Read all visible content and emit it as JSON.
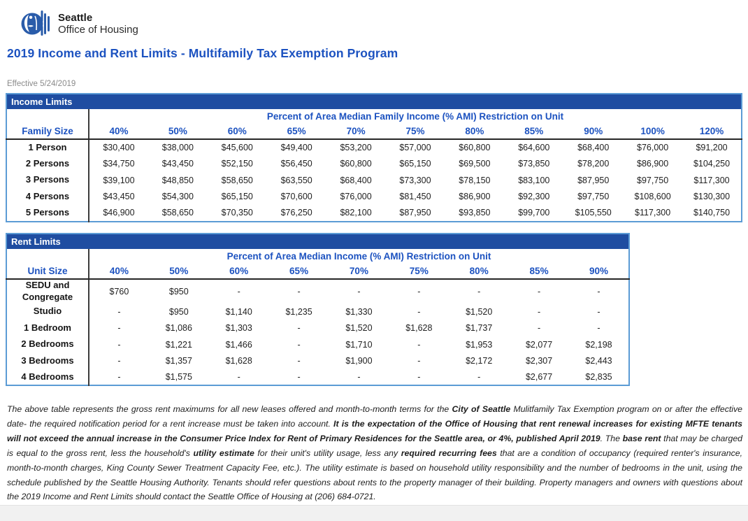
{
  "colors": {
    "accent_blue": "#1c52c0",
    "section_bar_blue": "#1f4da1",
    "table_border_blue": "#5b9bd5",
    "logo_blue": "#2a5caa"
  },
  "header": {
    "logo_brand": "Seattle",
    "logo_subtitle": "Office of Housing",
    "title": "2019 Income and Rent Limits - Multifamily Tax Exemption Program",
    "effective_date": "Effective 5/24/2019"
  },
  "income_table": {
    "section_title": "Income Limits",
    "span_header": "Percent of Area Median Family Income (% AMI) Restriction on Unit",
    "row_header": "Family Size",
    "columns": [
      "40%",
      "50%",
      "60%",
      "65%",
      "70%",
      "75%",
      "80%",
      "85%",
      "90%",
      "100%",
      "120%"
    ],
    "rows": [
      {
        "label": "1 Person",
        "values": [
          "$30,400",
          "$38,000",
          "$45,600",
          "$49,400",
          "$53,200",
          "$57,000",
          "$60,800",
          "$64,600",
          "$68,400",
          "$76,000",
          "$91,200"
        ]
      },
      {
        "label": "2 Persons",
        "values": [
          "$34,750",
          "$43,450",
          "$52,150",
          "$56,450",
          "$60,800",
          "$65,150",
          "$69,500",
          "$73,850",
          "$78,200",
          "$86,900",
          "$104,250"
        ]
      },
      {
        "label": "3 Persons",
        "values": [
          "$39,100",
          "$48,850",
          "$58,650",
          "$63,550",
          "$68,400",
          "$73,300",
          "$78,150",
          "$83,100",
          "$87,950",
          "$97,750",
          "$117,300"
        ]
      },
      {
        "label": "4 Persons",
        "values": [
          "$43,450",
          "$54,300",
          "$65,150",
          "$70,600",
          "$76,000",
          "$81,450",
          "$86,900",
          "$92,300",
          "$97,750",
          "$108,600",
          "$130,300"
        ]
      },
      {
        "label": "5 Persons",
        "values": [
          "$46,900",
          "$58,650",
          "$70,350",
          "$76,250",
          "$82,100",
          "$87,950",
          "$93,850",
          "$99,700",
          "$105,550",
          "$117,300",
          "$140,750"
        ]
      }
    ]
  },
  "rent_table": {
    "section_title": "Rent Limits",
    "span_header": "Percent of Area Median Income (% AMI) Restriction on Unit",
    "row_header": "Unit Size",
    "columns": [
      "40%",
      "50%",
      "60%",
      "65%",
      "70%",
      "75%",
      "80%",
      "85%",
      "90%"
    ],
    "rows": [
      {
        "label": "SEDU and Congregate",
        "values": [
          "$760",
          "$950",
          "-",
          "-",
          "-",
          "-",
          "-",
          "-",
          "-"
        ]
      },
      {
        "label": "Studio",
        "values": [
          "-",
          "$950",
          "$1,140",
          "$1,235",
          "$1,330",
          "-",
          "$1,520",
          "-",
          "-"
        ]
      },
      {
        "label": "1 Bedroom",
        "values": [
          "-",
          "$1,086",
          "$1,303",
          "-",
          "$1,520",
          "$1,628",
          "$1,737",
          "-",
          "-"
        ]
      },
      {
        "label": "2 Bedrooms",
        "values": [
          "-",
          "$1,221",
          "$1,466",
          "-",
          "$1,710",
          "-",
          "$1,953",
          "$2,077",
          "$2,198"
        ]
      },
      {
        "label": "3 Bedrooms",
        "values": [
          "-",
          "$1,357",
          "$1,628",
          "-",
          "$1,900",
          "-",
          "$2,172",
          "$2,307",
          "$2,443"
        ]
      },
      {
        "label": "4 Bedrooms",
        "values": [
          "-",
          "$1,575",
          "-",
          "-",
          "-",
          "-",
          "-",
          "$2,677",
          "$2,835"
        ]
      }
    ]
  },
  "footnote": {
    "segments": [
      {
        "t": "The above table represents the gross rent maximums for all new leases offered and month-to-month terms for the ",
        "b": false
      },
      {
        "t": "City of Seattle",
        "b": true
      },
      {
        "t": " Mulitfamily Tax Exemption program on or after the effective date- the required notification period for a rent increase must be taken into account.  ",
        "b": false
      },
      {
        "t": "It is the expectation of the Office of Housing that rent renewal increases for existing MFTE tenants will not exceed the annual increase in the Consumer Price Index for Rent of Primary Residences for the Seattle area, or 4%, published April 2019",
        "b": true
      },
      {
        "t": ". The ",
        "b": false
      },
      {
        "t": "base rent",
        "b": true
      },
      {
        "t": " that may be charged is equal to the gross rent, less the household's ",
        "b": false
      },
      {
        "t": "utility estimate",
        "b": true
      },
      {
        "t": " for their unit's utility usage, less any ",
        "b": false
      },
      {
        "t": "required recurring fees",
        "b": true
      },
      {
        "t": " that are a condition of occupancy (required renter's insurance, month-to-month charges, King County Sewer Treatment Capacity Fee, etc.).  The utility estimate is based on household utility responsibility and the number of bedrooms in the unit, using the schedule published by the Seattle Housing Authority.  Tenants should refer questions about rents to the property manager of their building.  Property managers and owners with questions about the 2019 Income and Rent Limits should contact the Seattle Office of Housing at (206) 684-0721.",
        "b": false
      }
    ]
  }
}
